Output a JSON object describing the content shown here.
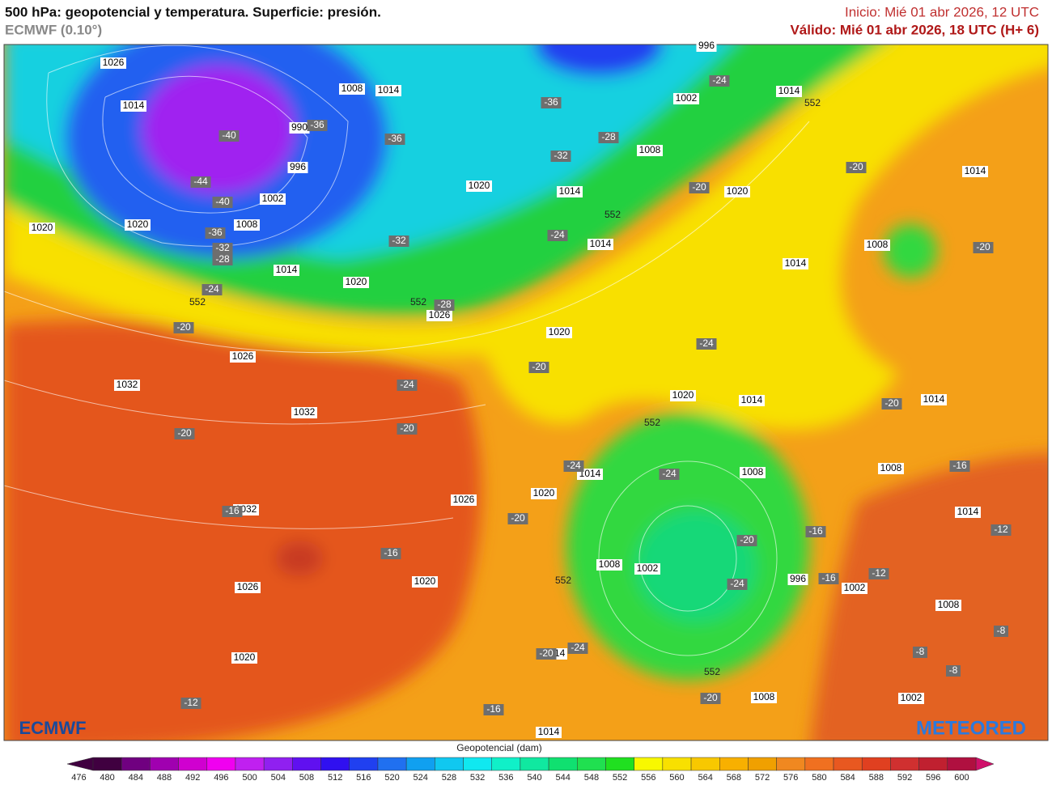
{
  "header": {
    "title": "500 hPa: geopotencial y temperatura. Superficie: presión.",
    "model": "ECMWF (0.10°)",
    "init": "Inicio: Mié 01 abr 2026, 12 UTC",
    "valid": "Válido: Mié 01 abr 2026, 18 UTC (H+ 6)"
  },
  "logos": {
    "ecmwf": "ECMWF",
    "meteored": "METEORED"
  },
  "pressure_labels": [
    1026,
    1014,
    1008,
    1014,
    990,
    996,
    1002,
    1008,
    1020,
    1020,
    1014,
    1020,
    1026,
    1026,
    1032,
    1032,
    1032,
    1026,
    1020,
    1026,
    1020,
    1020,
    1014,
    1008,
    1008,
    1002,
    996,
    1002,
    1008,
    1002,
    1008,
    1014,
    1014,
    1020,
    1020,
    1014,
    1014,
    1008,
    1014,
    1014,
    1014,
    1008,
    1002,
    1014,
    1020,
    1020,
    1008,
    1014,
    1014,
    996
  ],
  "temperature_labels": [
    -40,
    -44,
    -40,
    -36,
    -32,
    -28,
    -24,
    -20,
    -36,
    -36,
    -36,
    -32,
    -28,
    -24,
    -24,
    -32,
    -28,
    -20,
    -20,
    -20,
    -24,
    -20,
    -24,
    -20,
    -20,
    -16,
    -16,
    -20,
    -24,
    -24,
    -20,
    -24,
    -16,
    -16,
    -16,
    -20,
    -12,
    -12,
    -8,
    -8,
    -8,
    -20,
    -24,
    -20,
    -16,
    -12
  ],
  "contour_labels": [
    552,
    552,
    552,
    552,
    552,
    552,
    552
  ],
  "colorbar": {
    "title": "Geopotencial (dam)",
    "ticks": [
      476,
      480,
      484,
      488,
      492,
      496,
      500,
      504,
      508,
      512,
      516,
      520,
      524,
      528,
      532,
      536,
      540,
      544,
      548,
      552,
      556,
      560,
      564,
      568,
      572,
      576,
      580,
      584,
      588,
      592,
      596,
      600
    ],
    "colors": [
      "#400040",
      "#700080",
      "#a000b0",
      "#d000d0",
      "#f000f0",
      "#c020f0",
      "#9020f0",
      "#6010f0",
      "#3010f0",
      "#2040f0",
      "#2070f0",
      "#10a0f0",
      "#10c8f0",
      "#10e8f0",
      "#10f0c8",
      "#10e8a0",
      "#10e070",
      "#20e050",
      "#20e020",
      "#f8f800",
      "#f8e000",
      "#f8c800",
      "#f8b000",
      "#f0a000",
      "#f08820",
      "#f07020",
      "#e85820",
      "#e04020",
      "#d03030",
      "#c02030",
      "#b01040"
    ]
  }
}
